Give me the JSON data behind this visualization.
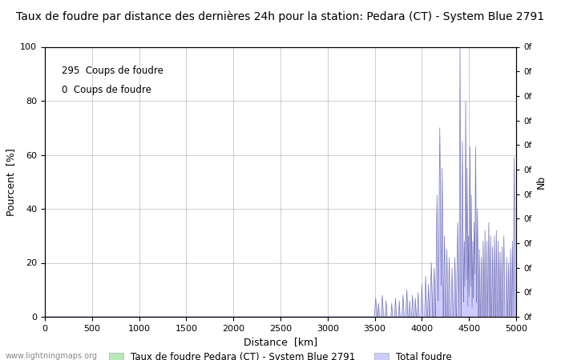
{
  "title": "Taux de foudre par distance des dernières 24h pour la station: Pedara (CT) - System Blue 2791",
  "xlabel": "Distance  [km]",
  "ylabel_left": "Pourcent  [%]",
  "ylabel_right": "Nb",
  "annotation1": "295  Coups de foudre",
  "annotation2": "0  Coups de foudre",
  "xlim": [
    0,
    5000
  ],
  "ylim": [
    0,
    100
  ],
  "xticks": [
    0,
    500,
    1000,
    1500,
    2000,
    2500,
    3000,
    3500,
    4000,
    4500,
    5000
  ],
  "yticks_left": [
    0,
    20,
    40,
    60,
    80,
    100
  ],
  "legend_green": "Taux de foudre Pedara (CT) - System Blue 2791",
  "legend_blue": "Total foudre",
  "watermark": "www.lightningmaps.org",
  "bg_color": "#ffffff",
  "grid_color": "#aaaaaa",
  "fill_green_color": "#b8e8b8",
  "fill_blue_color": "#ccccff",
  "line_blue_color": "#7777bb",
  "title_fontsize": 10
}
